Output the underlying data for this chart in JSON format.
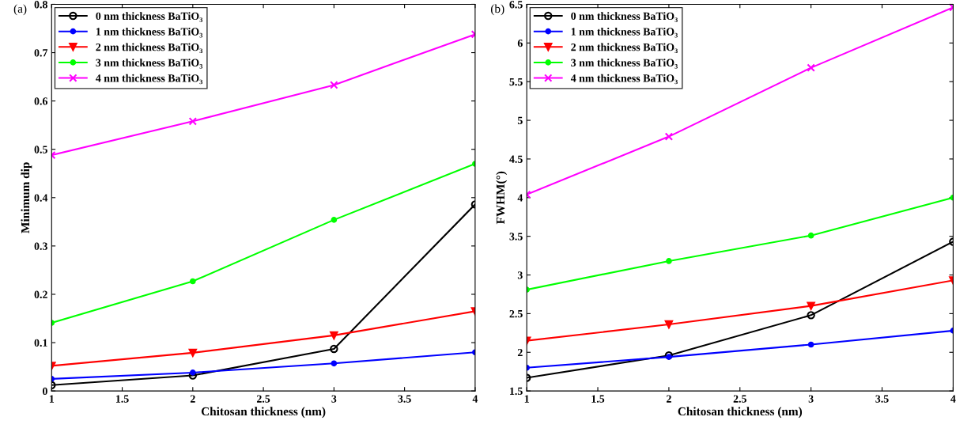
{
  "chart_data": [
    {
      "type": "line",
      "annotations": [
        "(a)"
      ],
      "xlabel": "Chitosan thickness (nm)",
      "ylabel": "Minimum dip",
      "x": [
        1,
        2,
        3,
        4
      ],
      "xlim": [
        1,
        4
      ],
      "xticks": [
        1,
        1.5,
        2,
        2.5,
        3,
        3.5,
        4
      ],
      "ylim": [
        0,
        0.8
      ],
      "yticks": [
        0,
        0.1,
        0.2,
        0.3,
        0.4,
        0.5,
        0.6,
        0.7,
        0.8
      ],
      "legend": "top left",
      "grid": false,
      "series": [
        {
          "name": "0 nm thickness BaTiO₃",
          "color": "#000000",
          "marker": "circle",
          "values": [
            0.012,
            0.032,
            0.087,
            0.386
          ]
        },
        {
          "name": "1 nm thickness BaTiO₃",
          "color": "#0000ff",
          "marker": "circle",
          "values": [
            0.025,
            0.038,
            0.057,
            0.08
          ]
        },
        {
          "name": "2 nm thickness BaTiO₃",
          "color": "#ff0000",
          "marker": "triangle",
          "values": [
            0.052,
            0.079,
            0.115,
            0.165
          ]
        },
        {
          "name": "3 nm thickness BaTiO₃",
          "color": "#00ff00",
          "marker": "circle",
          "values": [
            0.141,
            0.227,
            0.354,
            0.47
          ]
        },
        {
          "name": "4 nm thickness BaTiO₃",
          "color": "#ff00ff",
          "marker": "cross",
          "values": [
            0.488,
            0.558,
            0.633,
            0.738
          ]
        }
      ]
    },
    {
      "type": "line",
      "annotations": [
        "(b)"
      ],
      "xlabel": "Chitosan thickness (nm)",
      "ylabel": "FWHM(°)",
      "x": [
        1,
        2,
        3,
        4
      ],
      "xlim": [
        1,
        4
      ],
      "xticks": [
        1,
        1.5,
        2,
        2.5,
        3,
        3.5,
        4
      ],
      "ylim": [
        1.5,
        6.5
      ],
      "yticks": [
        1.5,
        2,
        2.5,
        3,
        3.5,
        4,
        4.5,
        5,
        5.5,
        6,
        6.5
      ],
      "legend": "top left",
      "grid": false,
      "series": [
        {
          "name": "0 nm thickness BaTiO₃",
          "color": "#000000",
          "marker": "circle",
          "values": [
            1.67,
            1.96,
            2.48,
            3.43
          ]
        },
        {
          "name": "1 nm thickness BaTiO₃",
          "color": "#0000ff",
          "marker": "circle",
          "values": [
            1.8,
            1.94,
            2.1,
            2.28
          ]
        },
        {
          "name": "2 nm thickness BaTiO₃",
          "color": "#ff0000",
          "marker": "triangle",
          "values": [
            2.15,
            2.36,
            2.6,
            2.93
          ]
        },
        {
          "name": "3 nm thickness BaTiO₃",
          "color": "#00ff00",
          "marker": "circle",
          "values": [
            2.81,
            3.18,
            3.51,
            4.0
          ]
        },
        {
          "name": "4 nm thickness BaTiO₃",
          "color": "#ff00ff",
          "marker": "cross",
          "values": [
            4.04,
            4.79,
            5.68,
            6.46
          ]
        }
      ]
    }
  ]
}
